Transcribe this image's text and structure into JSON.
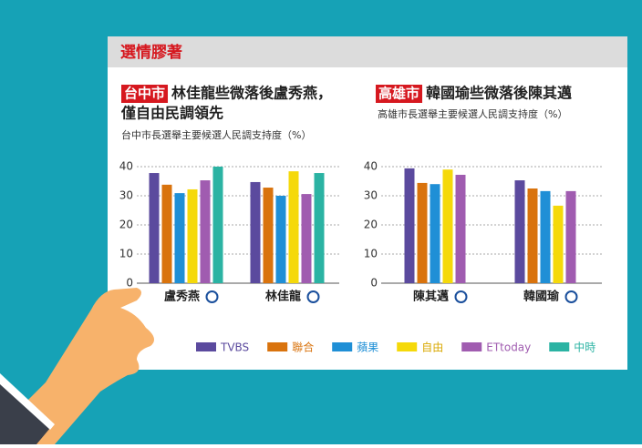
{
  "header": {
    "title": "選情膠著"
  },
  "chart_data": [
    {
      "type": "bar",
      "tag": "台中市",
      "title_lines": [
        "林佳龍些微落後盧秀燕，",
        "僅自由民調領先"
      ],
      "subtitle": "台中市長選舉主要候選人民調支持度（%）",
      "categories": [
        "盧秀燕",
        "林佳龍"
      ],
      "series": [
        {
          "name": "TVBS",
          "color": "#5b4a9e",
          "values": [
            37.8,
            34.7
          ]
        },
        {
          "name": "聯合",
          "color": "#d9730d",
          "values": [
            33.8,
            32.8
          ]
        },
        {
          "name": "蘋果",
          "color": "#1f8fd6",
          "values": [
            30.9,
            30
          ]
        },
        {
          "name": "自由",
          "color": "#f5d90a",
          "values": [
            32.2,
            38.4
          ]
        },
        {
          "name": "ETtoday",
          "color": "#a05cb0",
          "values": [
            35.3,
            30.6
          ]
        },
        {
          "name": "中時",
          "color": "#2bb3a3",
          "values": [
            40,
            37.8
          ]
        }
      ],
      "ylim": [
        0,
        40
      ],
      "yticks": [
        0,
        10,
        20,
        30,
        40
      ],
      "grid": true
    },
    {
      "type": "bar",
      "tag": "高雄市",
      "title_lines": [
        "韓國瑜些微落後陳其邁"
      ],
      "subtitle": "高雄市長選舉主要候選人民調支持度（%）",
      "categories": [
        "陳其邁",
        "韓國瑜"
      ],
      "series": [
        {
          "values": [
            39.4,
            35.3
          ]
        },
        {
          "values": [
            34.4,
            32.5
          ]
        },
        {
          "values": [
            34,
            31.6
          ]
        },
        {
          "values": [
            39,
            26.6
          ]
        },
        {
          "values": [
            37.2,
            31.6
          ]
        }
      ],
      "ylim": [
        0,
        40
      ],
      "yticks": [
        0,
        10,
        20,
        30,
        40
      ],
      "grid": true
    }
  ]
}
